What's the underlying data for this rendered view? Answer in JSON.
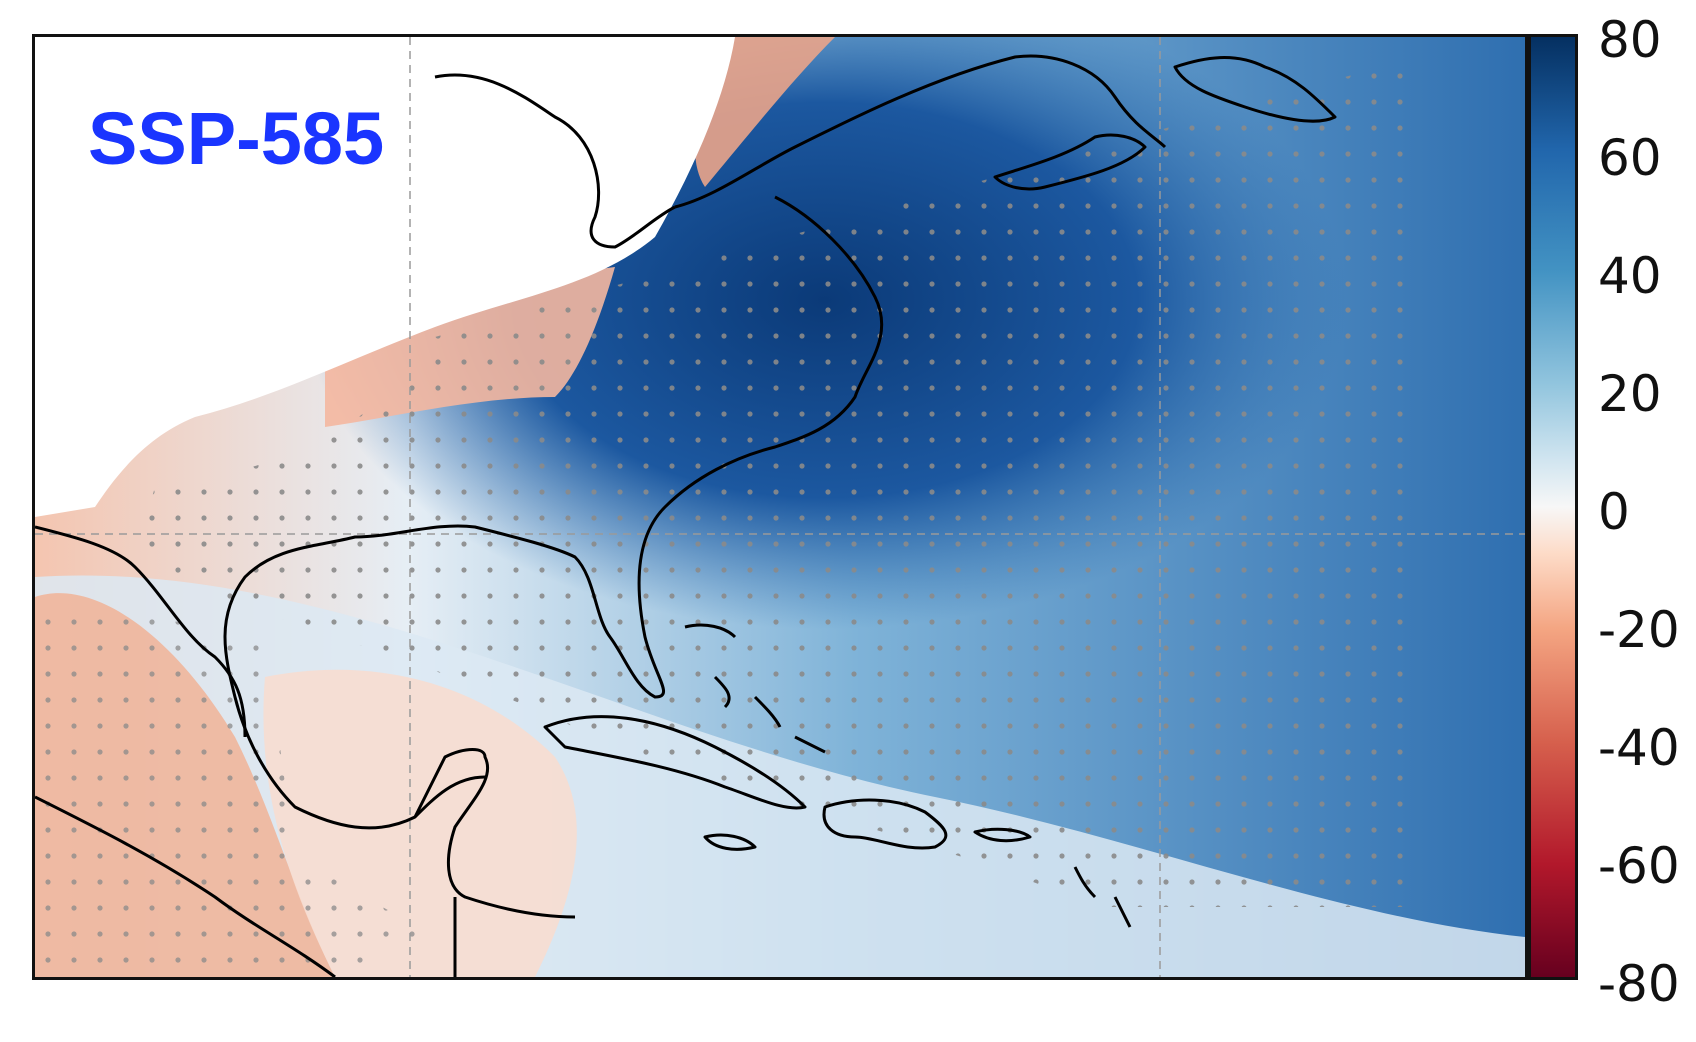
{
  "figure": {
    "panel_label": "SSP-585",
    "colorbar": {
      "ticks": [
        "80",
        "60",
        "40",
        "20",
        "0",
        "-20",
        "-40",
        "-60",
        "-80"
      ],
      "range": [
        -80,
        80
      ],
      "colors": [
        "#67001f",
        "#b2182b",
        "#d6604d",
        "#f4a582",
        "#fddbc7",
        "#f7f7f7",
        "#d1e5f0",
        "#92c5de",
        "#4393c3",
        "#2166ac",
        "#053061"
      ]
    },
    "accent_colors": {
      "label": "#1a35ff",
      "stipple": "#8a8a8a",
      "coastline": "#000000"
    }
  }
}
